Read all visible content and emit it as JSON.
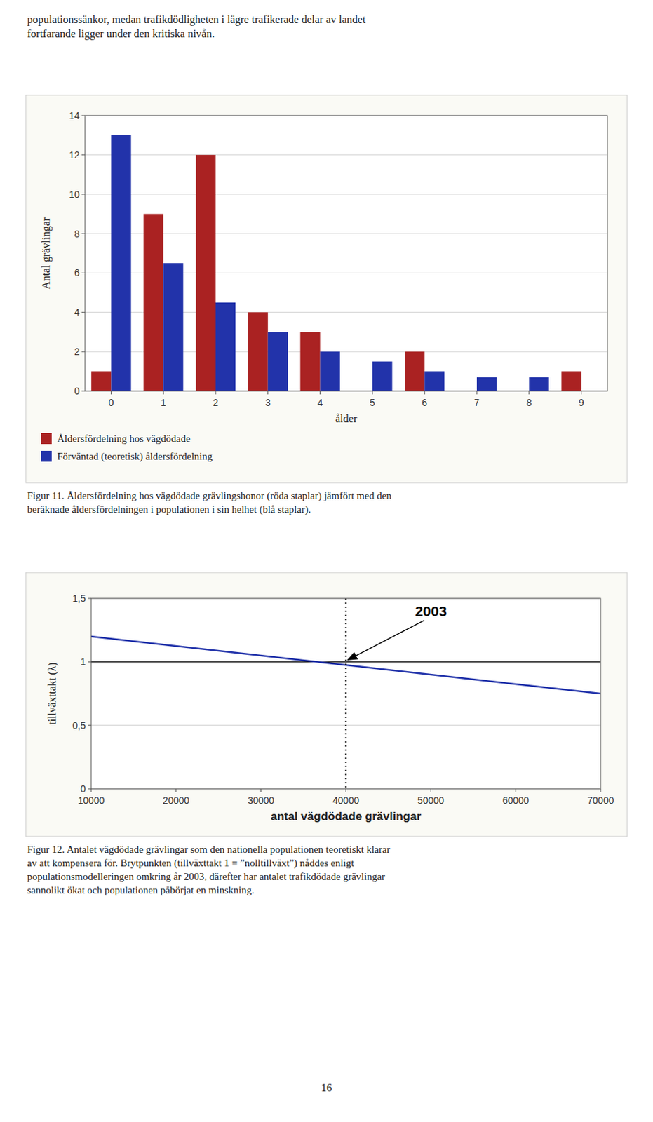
{
  "intro": "populationssänkor, medan trafikdödligheten i lägre trafikerade delar av landet\nfortfarande ligger under den kritiska nivån.",
  "page_number": "16",
  "chart_data": [
    {
      "type": "bar",
      "xlabel": "ålder",
      "ylabel": "Antal grävlingar",
      "categories": [
        "0",
        "1",
        "2",
        "3",
        "4",
        "5",
        "6",
        "7",
        "8",
        "9"
      ],
      "series": [
        {
          "name": "Åldersfördelning hos vägdödade",
          "color": "#AA2222",
          "values": [
            1,
            9,
            12,
            4,
            3,
            0,
            2,
            0,
            0,
            1
          ]
        },
        {
          "name": "Förväntad (teoretisk) åldersfördelning",
          "color": "#2233AA",
          "values": [
            13,
            6.5,
            4.5,
            3,
            2,
            1.5,
            1,
            0.7,
            0.7,
            0
          ]
        }
      ],
      "ylim": [
        0,
        14
      ],
      "yticks": [
        0,
        2,
        4,
        6,
        8,
        10,
        12,
        14
      ],
      "grid": true,
      "legend": "bottom",
      "caption": "Figur 11. Åldersfördelning hos vägdödade grävlingshonor (röda staplar) jämfört med den\nberäknade åldersfördelningen i populationen i sin helhet (blå staplar)."
    },
    {
      "type": "line",
      "xlabel": "antal vägdödade grävlingar",
      "ylabel": "tillväxttakt (λ)",
      "x": [
        10000,
        70000
      ],
      "series": [
        {
          "color": "#2233AA",
          "values": [
            1.2,
            0.75
          ]
        }
      ],
      "xlim": [
        10000,
        70000
      ],
      "xticks": [
        10000,
        20000,
        30000,
        40000,
        50000,
        60000,
        70000
      ],
      "ylim": [
        0,
        1.5
      ],
      "yticks": [
        0,
        {
          "value": 0.5,
          "label": "0,5"
        },
        1,
        {
          "value": 1.5,
          "label": "1,5"
        }
      ],
      "grid": true,
      "hline": 1.0,
      "vline": 40000,
      "annotations": [
        {
          "text": "2003",
          "x": 40000,
          "y": 1.0
        }
      ],
      "caption": "Figur 12. Antalet vägdödade grävlingar som den nationella populationen teoretiskt klarar\nav att kompensera för. Brytpunkten (tillväxttakt 1 = ”nolltillväxt”) nåddes enligt\npopulationsmodelleringen omkring år 2003, därefter har antalet trafikdödade grävlingar\nsannolikt ökat och populationen påbörjat en minskning."
    }
  ]
}
